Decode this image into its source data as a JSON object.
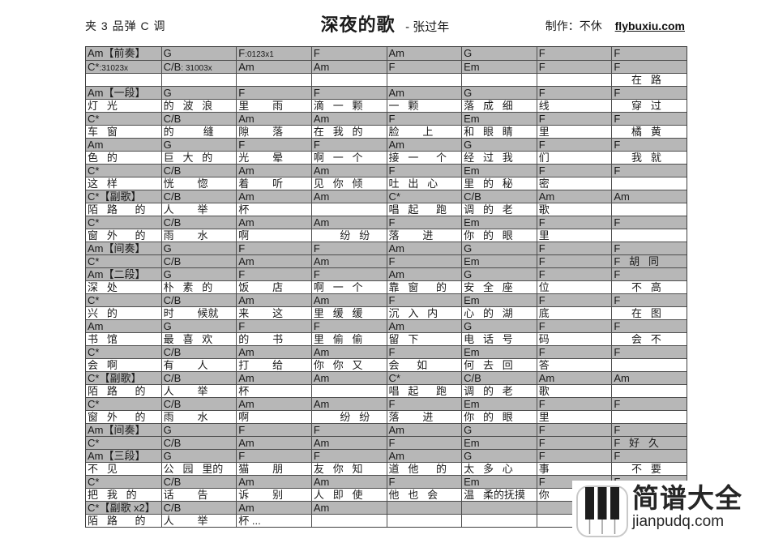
{
  "header": {
    "capo": "夹 3 品弹 C 调",
    "title": "深夜的歌",
    "subtitle": "- 张过年",
    "maker": "制作：不休",
    "maker_site": "flybuxiu.com"
  },
  "sheet": {
    "colors": {
      "chord_row_bg": "#b7b7b7",
      "grid_line": "#4d4d4d"
    },
    "rows": [
      {
        "type": "chord",
        "cells": [
          "Am【前奏】",
          "G",
          "F:0123x1",
          "F",
          "Am",
          "G",
          "F",
          "F"
        ]
      },
      {
        "type": "chord",
        "cells": [
          "C*:31023x",
          "C/B: 31003x",
          "Am",
          "Am",
          "F",
          "Em",
          "F",
          "F"
        ]
      },
      {
        "type": "lyric",
        "cells": [
          "",
          "",
          "",
          "",
          "",
          "",
          "",
          "      在   路"
        ]
      },
      {
        "type": "chord",
        "cells": [
          "Am【一段】",
          "G",
          "F",
          "F",
          "Am",
          "G",
          "F",
          "F"
        ]
      },
      {
        "type": "lyric",
        "cells": [
          "灯   光",
          "的   波   浪",
          "里        雨",
          "滴   一   颗",
          "一   颗",
          "落   成   细",
          "线",
          "      穿   过"
        ]
      },
      {
        "type": "chord",
        "cells": [
          "C*",
          "C/B",
          "Am",
          "Am",
          "F",
          "Em",
          "F",
          "F"
        ]
      },
      {
        "type": "lyric",
        "cells": [
          "车   窗",
          "的          缝",
          "隙        落",
          "在   我   的",
          "脸        上",
          "和   眼   睛",
          "里",
          "      橘   黄"
        ]
      },
      {
        "type": "chord",
        "cells": [
          "Am",
          "G",
          "F",
          "F",
          "Am",
          "G",
          "F",
          "F"
        ]
      },
      {
        "type": "lyric",
        "cells": [
          "色   的",
          "巨   大   的",
          "光        晕",
          "啊   一   个",
          "接   一      个",
          "经   过   我",
          "们",
          "      我   就"
        ]
      },
      {
        "type": "chord",
        "cells": [
          "C*",
          "C/B",
          "Am",
          "Am",
          "F",
          "Em",
          "F",
          "F"
        ]
      },
      {
        "type": "lyric",
        "cells": [
          "这   样",
          "恍        惚",
          "着        听",
          "见   你   倾",
          "吐   出   心",
          "里   的   秘",
          "密",
          ""
        ]
      },
      {
        "type": "chord",
        "cells": [
          "C*【副歌】",
          "C/B",
          "Am",
          "Am",
          "C*",
          "C/B",
          "Am",
          "Am"
        ]
      },
      {
        "type": "lyric",
        "cells": [
          "陌   路      的",
          "人        举",
          "杯",
          "",
          "唱   起      跑",
          "调   的   老",
          "歌",
          ""
        ]
      },
      {
        "type": "chord",
        "cells": [
          "C*",
          "C/B",
          "Am",
          "Am",
          "F",
          "Em",
          "F",
          "F"
        ]
      },
      {
        "type": "lyric",
        "cells": [
          "窗   外      的",
          "雨        水",
          "啊",
          "         纷   纷",
          "落        进",
          "你   的   眼",
          "里",
          ""
        ]
      },
      {
        "type": "chord",
        "cells": [
          "Am【间奏】",
          "G",
          "F",
          "F",
          "Am",
          "G",
          "F",
          "F"
        ]
      },
      {
        "type": "chord",
        "cells": [
          "C*",
          "C/B",
          "Am",
          "Am",
          "F",
          "Em",
          "F",
          "F   胡   同"
        ]
      },
      {
        "type": "chord",
        "cells": [
          "Am【二段】",
          "G",
          "F",
          "F",
          "Am",
          "G",
          "F",
          "F"
        ]
      },
      {
        "type": "lyric",
        "cells": [
          "深   处",
          "朴   素   的",
          "饭        店",
          "啊   一   个",
          "靠   窗      的",
          "安   全   座",
          "位",
          "      不   高"
        ]
      },
      {
        "type": "chord",
        "cells": [
          "C*",
          "C/B",
          "Am",
          "Am",
          "F",
          "Em",
          "F",
          "F"
        ]
      },
      {
        "type": "lyric",
        "cells": [
          "兴   的",
          "时        候就",
          "来        这",
          "里   缓   缓",
          "沉   入   内",
          "心   的   湖",
          "底",
          "      在   图"
        ]
      },
      {
        "type": "chord",
        "cells": [
          "Am",
          "G",
          "F",
          "F",
          "Am",
          "G",
          "F",
          "F"
        ]
      },
      {
        "type": "lyric",
        "cells": [
          "书   馆",
          "最   喜   欢",
          "的        书",
          "里   偷   偷",
          "留   下",
          "电   话   号",
          "码",
          "      会   不"
        ]
      },
      {
        "type": "chord",
        "cells": [
          "C*",
          "C/B",
          "Am",
          "Am",
          "F",
          "Em",
          "F",
          "F"
        ]
      },
      {
        "type": "lyric",
        "cells": [
          "会   啊",
          "有        人",
          "打        给",
          "你   你   又",
          "会      如",
          "何   去   回",
          "答",
          ""
        ]
      },
      {
        "type": "chord",
        "cells": [
          "C*【副歌】",
          "C/B",
          "Am",
          "Am",
          "C*",
          "C/B",
          "Am",
          "Am"
        ]
      },
      {
        "type": "lyric",
        "cells": [
          "陌   路      的",
          "人        举",
          "杯",
          "",
          "唱   起      跑",
          "调   的   老",
          "歌",
          ""
        ]
      },
      {
        "type": "chord",
        "cells": [
          "C*",
          "C/B",
          "Am",
          "Am",
          "F",
          "Em",
          "F",
          "F"
        ]
      },
      {
        "type": "lyric",
        "cells": [
          "窗   外      的",
          "雨        水",
          "啊",
          "         纷   纷",
          "落        进",
          "你   的   眼",
          "里",
          ""
        ]
      },
      {
        "type": "chord",
        "cells": [
          "Am【间奏】",
          "G",
          "F",
          "F",
          "Am",
          "G",
          "F",
          "F"
        ]
      },
      {
        "type": "chord",
        "cells": [
          "C*",
          "C/B",
          "Am",
          "Am",
          "F",
          "Em",
          "F",
          "F   好   久"
        ]
      },
      {
        "type": "chord",
        "cells": [
          "Am【三段】",
          "G",
          "F",
          "F",
          "Am",
          "G",
          "F",
          "F"
        ]
      },
      {
        "type": "lyric",
        "cells": [
          "不   见",
          "公   园   里的",
          "猫        朋",
          "友   你   知",
          "道   他      的",
          "太   多   心",
          "事",
          "      不   要"
        ]
      },
      {
        "type": "chord",
        "cells": [
          "C*",
          "C/B",
          "Am",
          "Am",
          "F",
          "Em",
          "F",
          "F"
        ]
      },
      {
        "type": "lyric",
        "cells": [
          "把   我   的",
          "话        告",
          "诉        别",
          "人   即   使",
          "他   也   会",
          "温   柔的抚摸",
          "你",
          ""
        ]
      },
      {
        "type": "chord",
        "cells": [
          "C*【副歌 x2】",
          "C/B",
          "Am",
          "Am",
          "",
          "",
          "",
          ""
        ]
      },
      {
        "type": "lyric",
        "cells": [
          "陌   路      的",
          "人        举",
          "杯 ...",
          "",
          "",
          "",
          "",
          ""
        ]
      }
    ]
  },
  "watermark": {
    "brand": "简谱大全",
    "site": "jianpudq.com"
  }
}
